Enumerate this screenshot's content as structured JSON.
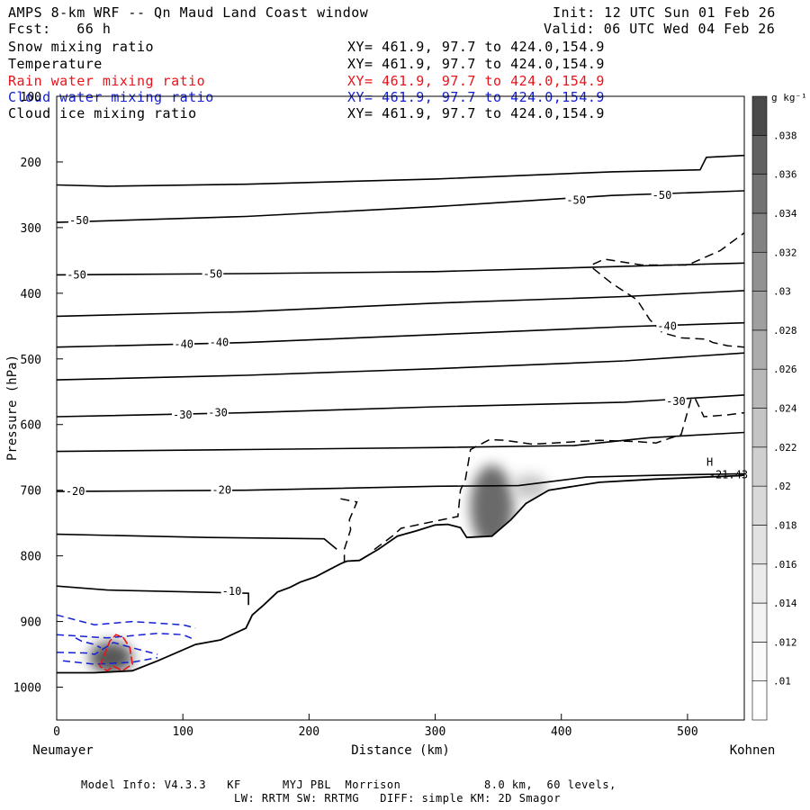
{
  "header": {
    "title": "AMPS 8-km WRF -- Qn Maud Land Coast window",
    "init": "Init: 12 UTC Sun 01 Feb 26",
    "fcst": "Fcst:   66 h",
    "valid": "Valid: 06 UTC Wed 04 Feb 26"
  },
  "fields": [
    {
      "name": "Snow mixing ratio",
      "xy": "XY= 461.9, 97.7 to 424.0,154.9",
      "color": "#000000"
    },
    {
      "name": "Temperature",
      "xy": "XY= 461.9, 97.7 to 424.0,154.9",
      "color": "#000000"
    },
    {
      "name": "Rain water mixing ratio",
      "xy": "XY= 461.9, 97.7 to 424.0,154.9",
      "color": "#e8141a"
    },
    {
      "name": "Cloud water mixing ratio",
      "xy": "XY= 461.9, 97.7 to 424.0,154.9",
      "color": "#1420d2"
    },
    {
      "name": "Cloud ice mixing ratio",
      "xy": "XY= 461.9, 97.7 to 424.0,154.9",
      "color": "#000000"
    }
  ],
  "footer": {
    "line1": "Model Info: V4.3.3   KF      MYJ PBL  Morrison            8.0 km,  60 levels,",
    "line2": "LW: RRTM SW: RRTMG   DIFF: simple KM: 2D Smagor"
  },
  "chart_data": {
    "type": "cross-section",
    "title": "AMPS 8-km WRF -- Qn Maud Land Coast window",
    "xlabel": "Distance (km)",
    "ylabel": "Pressure (hPa)",
    "xlim": [
      0,
      545
    ],
    "ylim": [
      1050,
      100
    ],
    "x_ticks": [
      0,
      100,
      200,
      300,
      400,
      500
    ],
    "y_ticks": [
      100,
      200,
      300,
      400,
      500,
      600,
      700,
      800,
      900,
      1000
    ],
    "x_endpoints": {
      "left": "Neumayer",
      "right": "Kohnen"
    },
    "colorbar": {
      "unit": "g kg⁻¹",
      "ticks": [
        ".01",
        ".012",
        ".014",
        ".016",
        ".018",
        ".02",
        ".022",
        ".024",
        ".026",
        ".028",
        ".03",
        ".032",
        ".034",
        ".036",
        ".038"
      ],
      "min": 0.009,
      "max": 0.04,
      "colors": [
        "#ffffff",
        "#fafafa",
        "#f3f3f3",
        "#ebebeb",
        "#e2e2e2",
        "#d9d9d9",
        "#cfcfcf",
        "#c4c4c4",
        "#b8b8b8",
        "#acacac",
        "#9f9f9f",
        "#919191",
        "#828282",
        "#727272",
        "#616161",
        "#4a4a4a"
      ]
    },
    "temperature_contours": [
      {
        "level": -50,
        "points": [
          [
            0,
            235
          ],
          [
            40,
            237
          ],
          [
            150,
            234
          ],
          [
            300,
            226
          ],
          [
            440,
            215
          ],
          [
            510,
            212
          ],
          [
            515,
            193
          ],
          [
            545,
            190
          ]
        ]
      },
      {
        "level": -50,
        "points": [
          [
            0,
            292
          ],
          [
            150,
            283
          ],
          [
            300,
            268
          ],
          [
            440,
            251
          ],
          [
            545,
            244
          ]
        ],
        "labels": [
          [
            10,
            289
          ],
          [
            404,
            258
          ],
          [
            472,
            251
          ]
        ]
      },
      {
        "level": -50,
        "points": [
          [
            0,
            372
          ],
          [
            150,
            370
          ],
          [
            300,
            367
          ],
          [
            450,
            359
          ],
          [
            545,
            354
          ]
        ],
        "labels": [
          [
            8,
            372
          ],
          [
            116,
            371
          ]
        ]
      },
      {
        "level": -40,
        "points": [
          [
            0,
            435
          ],
          [
            150,
            428
          ],
          [
            300,
            415
          ],
          [
            450,
            405
          ],
          [
            545,
            396
          ]
        ]
      },
      {
        "level": -40,
        "points": [
          [
            0,
            482
          ],
          [
            150,
            475
          ],
          [
            300,
            463
          ],
          [
            450,
            451
          ],
          [
            545,
            445
          ]
        ],
        "labels": [
          [
            93,
            478
          ],
          [
            121,
            475
          ],
          [
            476,
            450
          ]
        ]
      },
      {
        "level": -30,
        "points": [
          [
            0,
            532
          ],
          [
            150,
            525
          ],
          [
            300,
            515
          ],
          [
            450,
            503
          ],
          [
            545,
            491
          ]
        ]
      },
      {
        "level": -30,
        "points": [
          [
            0,
            588
          ],
          [
            150,
            582
          ],
          [
            300,
            573
          ],
          [
            450,
            566
          ],
          [
            545,
            555
          ]
        ],
        "labels": [
          [
            92,
            585
          ],
          [
            120,
            582
          ],
          [
            483,
            565
          ]
        ]
      },
      {
        "level": -20,
        "points": [
          [
            0,
            641
          ],
          [
            150,
            638
          ],
          [
            300,
            635
          ],
          [
            410,
            632
          ],
          [
            470,
            620
          ],
          [
            545,
            612
          ]
        ]
      },
      {
        "level": -20,
        "points": [
          [
            0,
            702
          ],
          [
            150,
            700
          ],
          [
            300,
            694
          ],
          [
            366,
            693
          ],
          [
            420,
            680
          ],
          [
            480,
            677
          ],
          [
            545,
            675
          ]
        ],
        "labels": [
          [
            7,
            702
          ],
          [
            123,
            700
          ]
        ]
      },
      {
        "level": -10,
        "points": [
          [
            0,
            767
          ],
          [
            120,
            772
          ],
          [
            212,
            774
          ],
          [
            222,
            790
          ]
        ]
      },
      {
        "level": -10,
        "points": [
          [
            0,
            846
          ],
          [
            40,
            852
          ],
          [
            110,
            855
          ],
          [
            152,
            857
          ],
          [
            152,
            875
          ]
        ],
        "labels": [
          [
            131,
            854
          ]
        ]
      }
    ],
    "cloud_ice_dashed": [
      [
        [
          225,
          713
        ],
        [
          238,
          718
        ],
        [
          232,
          745
        ],
        [
          233,
          760
        ],
        [
          228,
          790
        ],
        [
          228,
          810
        ],
        [
          246,
          806
        ],
        [
          252,
          790
        ],
        [
          266,
          770
        ],
        [
          273,
          758
        ],
        [
          300,
          747
        ],
        [
          318,
          740
        ],
        [
          320,
          700
        ],
        [
          324,
          683
        ],
        [
          328,
          638
        ],
        [
          343,
          623
        ],
        [
          355,
          624
        ],
        [
          377,
          630
        ],
        [
          430,
          624
        ],
        [
          460,
          626
        ],
        [
          475,
          628
        ],
        [
          495,
          615
        ],
        [
          503,
          560
        ],
        [
          506,
          560
        ],
        [
          513,
          588
        ],
        [
          533,
          585
        ],
        [
          545,
          582
        ]
      ],
      [
        [
          425,
          356
        ],
        [
          434,
          348
        ],
        [
          464,
          357
        ],
        [
          500,
          357
        ],
        [
          526,
          335
        ],
        [
          545,
          308
        ]
      ],
      [
        [
          425,
          362
        ],
        [
          440,
          385
        ],
        [
          460,
          410
        ],
        [
          470,
          440
        ],
        [
          480,
          460
        ],
        [
          495,
          468
        ],
        [
          515,
          470
        ],
        [
          520,
          475
        ],
        [
          532,
          480
        ],
        [
          545,
          482
        ]
      ]
    ],
    "cloud_water_dashed": [
      [
        [
          0,
          890
        ],
        [
          20,
          900
        ],
        [
          30,
          905
        ],
        [
          60,
          900
        ],
        [
          100,
          905
        ],
        [
          110,
          910
        ]
      ],
      [
        [
          0,
          920
        ],
        [
          40,
          925
        ],
        [
          80,
          918
        ],
        [
          100,
          920
        ],
        [
          110,
          928
        ]
      ],
      [
        [
          0,
          947
        ],
        [
          25,
          948
        ],
        [
          30,
          950
        ],
        [
          45,
          932
        ],
        [
          60,
          940
        ],
        [
          80,
          950
        ]
      ],
      [
        [
          5,
          960
        ],
        [
          30,
          965
        ],
        [
          60,
          962
        ],
        [
          80,
          955
        ]
      ],
      [
        [
          15,
          925
        ],
        [
          20,
          930
        ],
        [
          30,
          935
        ],
        [
          35,
          940
        ]
      ]
    ],
    "rain_water_contour": [
      [
        [
          34,
          968
        ],
        [
          38,
          950
        ],
        [
          42,
          930
        ],
        [
          47,
          920
        ],
        [
          53,
          925
        ],
        [
          58,
          940
        ],
        [
          60,
          965
        ],
        [
          52,
          975
        ],
        [
          45,
          968
        ],
        [
          40,
          975
        ],
        [
          34,
          968
        ]
      ]
    ],
    "terrain": [
      [
        0,
        978
      ],
      [
        30,
        978
      ],
      [
        60,
        975
      ],
      [
        80,
        960
      ],
      [
        110,
        935
      ],
      [
        130,
        928
      ],
      [
        150,
        910
      ],
      [
        155,
        890
      ],
      [
        164,
        875
      ],
      [
        175,
        855
      ],
      [
        185,
        848
      ],
      [
        193,
        840
      ],
      [
        205,
        832
      ],
      [
        215,
        822
      ],
      [
        225,
        812
      ],
      [
        230,
        808
      ],
      [
        240,
        807
      ],
      [
        255,
        790
      ],
      [
        270,
        770
      ],
      [
        285,
        762
      ],
      [
        300,
        753
      ],
      [
        310,
        752
      ],
      [
        320,
        757
      ],
      [
        325,
        772
      ],
      [
        345,
        770
      ],
      [
        360,
        745
      ],
      [
        372,
        720
      ],
      [
        390,
        700
      ],
      [
        430,
        688
      ],
      [
        475,
        683
      ],
      [
        540,
        678
      ],
      [
        545,
        677
      ]
    ],
    "snow_mixing_blobs": [
      {
        "x": 43,
        "p": 955,
        "value": 0.037
      },
      {
        "x": 345,
        "p": 725,
        "value": 0.033
      },
      {
        "x": 375,
        "p": 695,
        "value": 0.016
      }
    ],
    "annotations": [
      {
        "text": "H",
        "x": 515,
        "p": 663
      },
      {
        "text": "-21.43",
        "x": 517,
        "p": 682
      }
    ]
  }
}
